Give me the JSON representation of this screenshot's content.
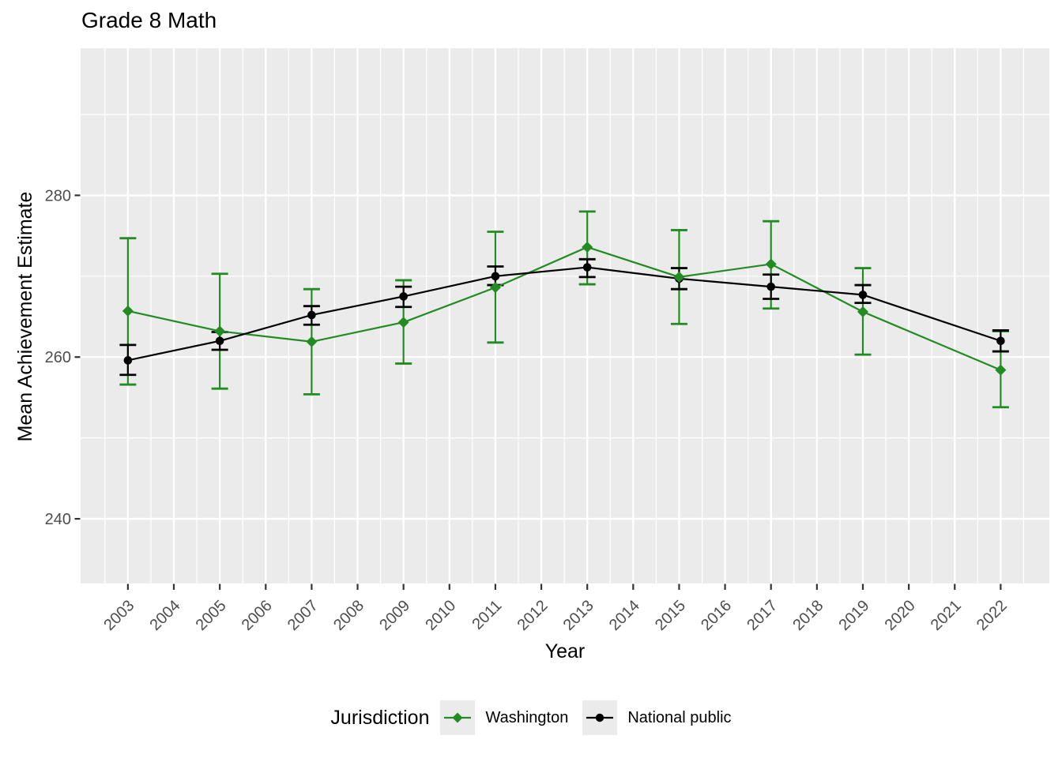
{
  "chart_data": {
    "type": "line",
    "title": "Grade 8 Math",
    "xlabel": "Year",
    "ylabel": "Mean Achievement Estimate",
    "legend_title": "Jurisdiction",
    "legend_position": "bottom",
    "grid": true,
    "panel_bg": "#EBEBEB",
    "grid_color": "#FFFFFF",
    "tick_color": "#333333",
    "tick_label_color": "#4D4D4D",
    "xlim": [
      2001.97,
      2023.06
    ],
    "ylim": [
      232,
      298.2
    ],
    "x_ticks": [
      2003,
      2004,
      2005,
      2006,
      2007,
      2008,
      2009,
      2010,
      2011,
      2012,
      2013,
      2014,
      2015,
      2016,
      2017,
      2018,
      2019,
      2020,
      2021,
      2022
    ],
    "y_ticks": [
      240,
      260,
      280
    ],
    "y_minor_ticks": [
      250,
      270,
      290
    ],
    "series": [
      {
        "name": "Washington",
        "color": "#228B22",
        "marker": "diamond",
        "x": [
          2003,
          2005,
          2007,
          2009,
          2011,
          2013,
          2015,
          2017,
          2019,
          2022
        ],
        "y": [
          265.7,
          263.2,
          261.9,
          264.3,
          268.6,
          273.6,
          269.9,
          271.5,
          265.6,
          258.4
        ],
        "ci_low": [
          256.6,
          256.1,
          255.4,
          259.2,
          261.8,
          269.0,
          264.1,
          266.0,
          260.3,
          253.8
        ],
        "ci_high": [
          274.7,
          270.3,
          268.4,
          269.5,
          275.5,
          278.0,
          275.7,
          276.8,
          271.0,
          263.2
        ]
      },
      {
        "name": "National public",
        "color": "#000000",
        "marker": "circle",
        "x": [
          2003,
          2005,
          2007,
          2009,
          2011,
          2013,
          2015,
          2017,
          2019,
          2022
        ],
        "y": [
          259.6,
          262.0,
          265.2,
          267.5,
          270.0,
          271.1,
          269.7,
          268.7,
          267.7,
          262.0
        ],
        "ci_low": [
          257.8,
          260.9,
          264.0,
          266.2,
          268.9,
          269.9,
          268.4,
          267.2,
          266.7,
          260.7
        ],
        "ci_high": [
          261.5,
          263.1,
          266.3,
          268.7,
          271.2,
          272.1,
          271.0,
          270.2,
          268.9,
          263.3
        ]
      }
    ]
  }
}
